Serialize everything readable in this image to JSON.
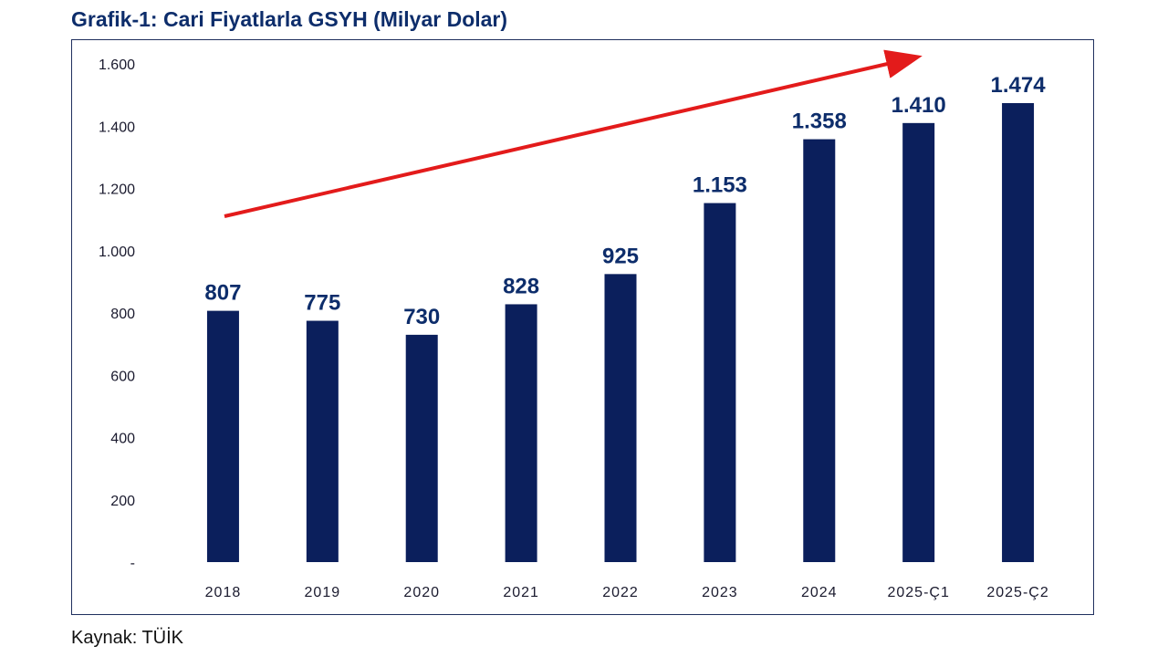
{
  "title": "Grafik-1: Cari Fiyatlarla GSYH (Milyar Dolar)",
  "source": "Kaynak: TÜİK",
  "colors": {
    "bar": "#0b1f5c",
    "label": "#0d2d6b",
    "arrow": "#e31b1b",
    "frame": "#1f2f5e"
  },
  "chart_data": {
    "type": "bar",
    "title": "Grafik-1: Cari Fiyatlarla GSYH (Milyar Dolar)",
    "xlabel": "",
    "ylabel": "",
    "categories": [
      "2018",
      "2019",
      "2020",
      "2021",
      "2022",
      "2023",
      "2024",
      "2025-Ç1",
      "2025-Ç2"
    ],
    "values": [
      807,
      775,
      730,
      828,
      925,
      1153,
      1358,
      1410,
      1474
    ],
    "value_labels": [
      "807",
      "775",
      "730",
      "828",
      "925",
      "1.153",
      "1.358",
      "1.410",
      "1.474"
    ],
    "ylim": [
      0,
      1600
    ],
    "y_ticks": [
      0,
      200,
      400,
      600,
      800,
      1000,
      1200,
      1400,
      1600
    ],
    "y_tick_labels": [
      "-",
      "200",
      "400",
      "600",
      "800",
      "1.000",
      "1.200",
      "1.400",
      "1.600"
    ],
    "grid": false,
    "legend": "none",
    "annotations": [
      {
        "type": "trend-arrow",
        "color": "red",
        "from_category": "2018",
        "to_category": "2025-Ç1"
      }
    ]
  }
}
